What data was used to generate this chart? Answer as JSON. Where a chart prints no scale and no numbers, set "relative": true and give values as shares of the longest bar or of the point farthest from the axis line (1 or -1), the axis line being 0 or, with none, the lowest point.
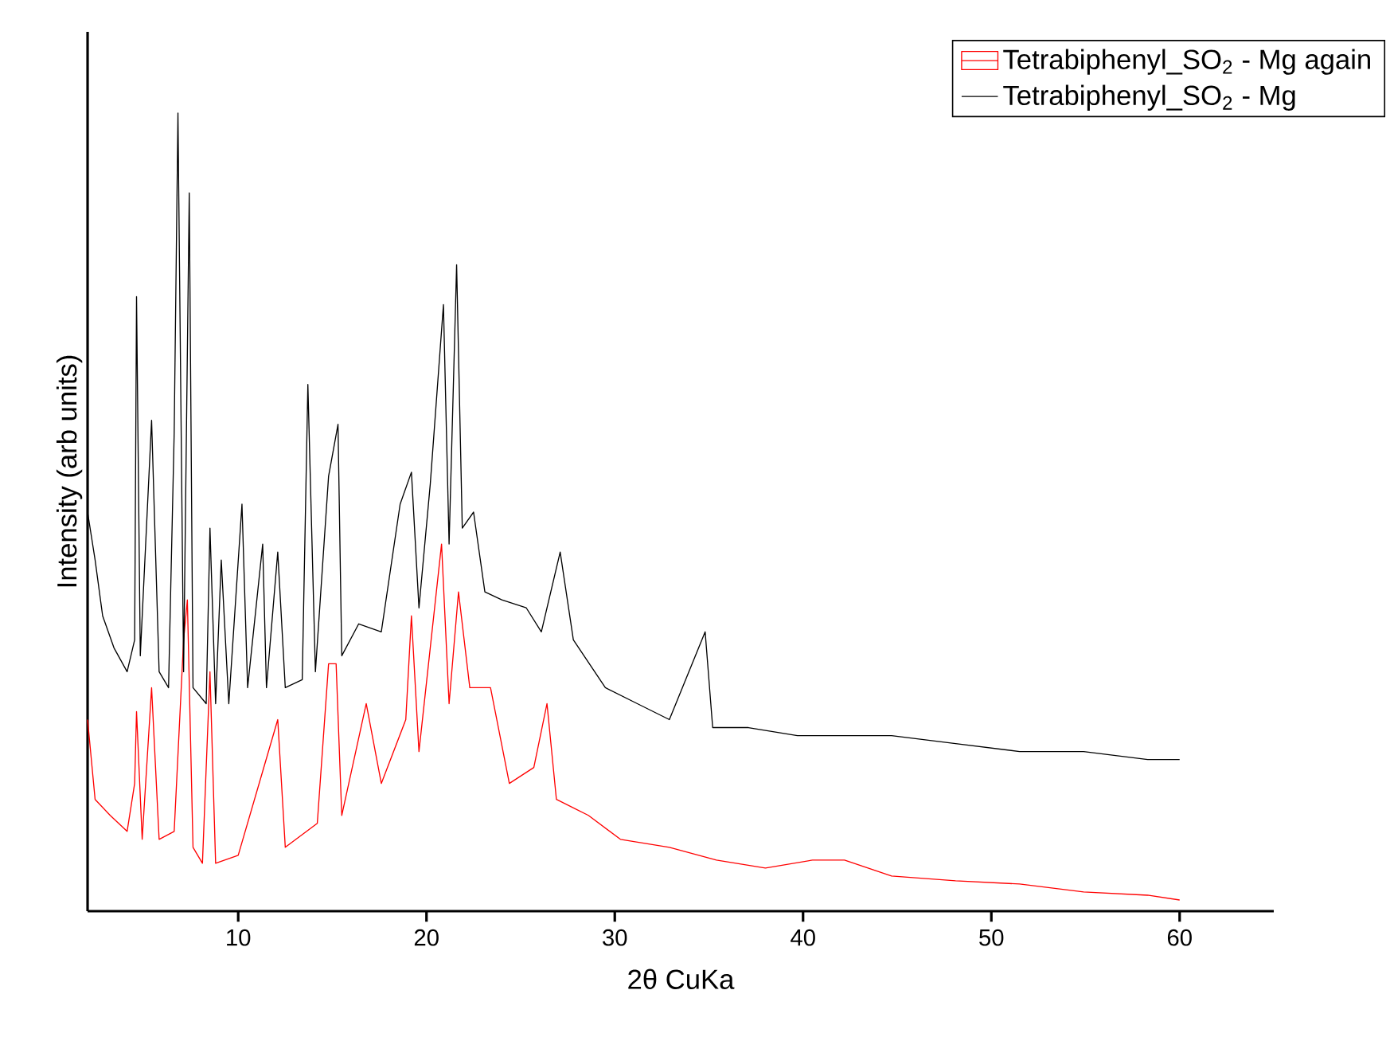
{
  "chart_data": {
    "type": "line",
    "xlabel": "2θ CuKa",
    "ylabel": "Intensity (arb units)",
    "relative": true,
    "xlim": [
      2,
      65
    ],
    "xticks": [
      10,
      20,
      30,
      40,
      50,
      60
    ],
    "legend": "top right",
    "grid": false,
    "marker": "none",
    "line_style": "solid",
    "series": [
      {
        "name": "Tetrabiphenyl_SO$_{2}$ - Mg again",
        "color": "#ff0000",
        "x": [
          2.0,
          2.4,
          3.2,
          4.1,
          4.5,
          4.6,
          4.9,
          5.4,
          5.8,
          6.6,
          7.1,
          7.3,
          7.6,
          8.1,
          8.5,
          8.8,
          10.0,
          12.1,
          12.5,
          14.2,
          14.8,
          15.2,
          15.5,
          16.8,
          17.6,
          18.9,
          19.2,
          19.6,
          20.2,
          20.8,
          21.2,
          21.7,
          22.3,
          23.4,
          24.4,
          25.7,
          26.4,
          26.9,
          28.6,
          30.3,
          32.9,
          35.4,
          38.0,
          40.5,
          42.2,
          44.7,
          48.1,
          51.5,
          54.9,
          58.3,
          60.0
        ],
        "values": [
          0.24,
          0.14,
          0.12,
          0.1,
          0.16,
          0.25,
          0.09,
          0.28,
          0.09,
          0.1,
          0.34,
          0.39,
          0.08,
          0.06,
          0.3,
          0.06,
          0.07,
          0.24,
          0.08,
          0.11,
          0.31,
          0.31,
          0.12,
          0.26,
          0.16,
          0.24,
          0.37,
          0.2,
          0.33,
          0.46,
          0.26,
          0.4,
          0.28,
          0.28,
          0.16,
          0.18,
          0.26,
          0.14,
          0.12,
          0.09,
          0.08,
          0.064,
          0.054,
          0.064,
          0.064,
          0.044,
          0.038,
          0.034,
          0.024,
          0.02,
          0.014
        ]
      },
      {
        "name": "Tetrabiphenyl_SO$_{2}$ - Mg",
        "color": "#000000",
        "x": [
          2.0,
          2.4,
          2.8,
          3.4,
          4.1,
          4.5,
          4.6,
          4.8,
          5.4,
          5.8,
          6.3,
          6.6,
          6.8,
          7.1,
          7.4,
          7.6,
          8.3,
          8.5,
          8.8,
          9.1,
          9.5,
          10.2,
          10.5,
          11.3,
          11.5,
          12.1,
          12.5,
          13.4,
          13.7,
          14.1,
          14.8,
          15.3,
          15.5,
          16.4,
          17.6,
          18.6,
          19.2,
          19.6,
          20.2,
          20.9,
          21.2,
          21.6,
          21.9,
          22.5,
          23.1,
          24.0,
          25.3,
          26.1,
          27.1,
          27.8,
          29.5,
          31.2,
          32.9,
          34.8,
          35.2,
          37.1,
          39.7,
          42.2,
          44.7,
          48.1,
          51.5,
          54.9,
          58.3,
          60.0
        ],
        "values": [
          0.5,
          0.44,
          0.37,
          0.33,
          0.3,
          0.34,
          0.77,
          0.32,
          0.615,
          0.3,
          0.28,
          0.6,
          1.0,
          0.3,
          0.9,
          0.28,
          0.26,
          0.48,
          0.26,
          0.44,
          0.26,
          0.51,
          0.28,
          0.46,
          0.28,
          0.45,
          0.28,
          0.29,
          0.66,
          0.3,
          0.545,
          0.61,
          0.32,
          0.36,
          0.35,
          0.51,
          0.55,
          0.38,
          0.535,
          0.76,
          0.46,
          0.81,
          0.48,
          0.5,
          0.4,
          0.39,
          0.38,
          0.35,
          0.45,
          0.34,
          0.28,
          0.26,
          0.24,
          0.35,
          0.23,
          0.23,
          0.22,
          0.22,
          0.22,
          0.21,
          0.2,
          0.2,
          0.19,
          0.19
        ]
      }
    ]
  }
}
